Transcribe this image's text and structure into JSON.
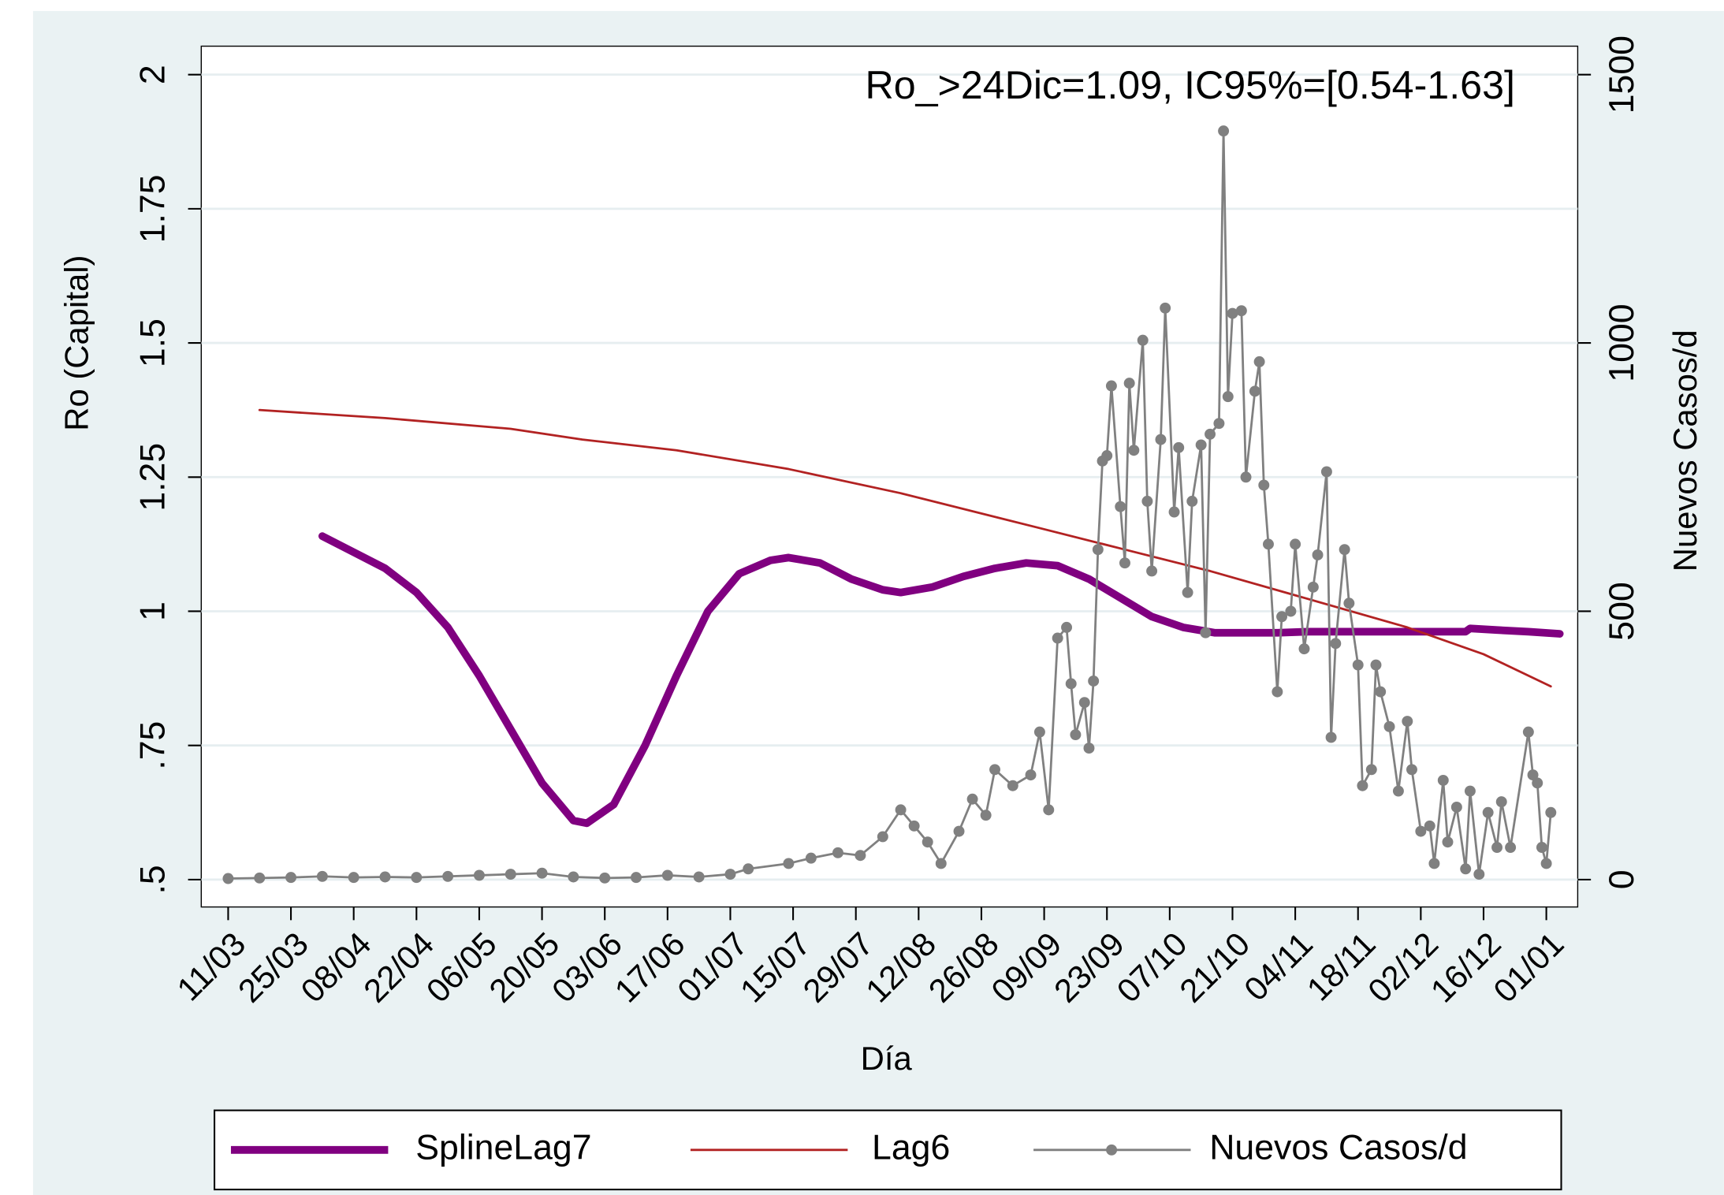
{
  "chart_data": {
    "type": "line",
    "annotation": "Ro_>24Dic=1.09, IC95%=[0.54-1.63]",
    "xlabel": "Día",
    "ylabel": "Ro (Capital)",
    "y2label": "Nuevos Casos/d",
    "xlim": [
      -6,
      301
    ],
    "xticks": [
      {
        "value": 0,
        "label": "11/03"
      },
      {
        "value": 14,
        "label": "25/03"
      },
      {
        "value": 28,
        "label": "08/04"
      },
      {
        "value": 42,
        "label": "22/04"
      },
      {
        "value": 56,
        "label": "06/05"
      },
      {
        "value": 70,
        "label": "20/05"
      },
      {
        "value": 84,
        "label": "03/06"
      },
      {
        "value": 98,
        "label": "17/06"
      },
      {
        "value": 112,
        "label": "01/07"
      },
      {
        "value": 126,
        "label": "15/07"
      },
      {
        "value": 140,
        "label": "29/07"
      },
      {
        "value": 154,
        "label": "12/08"
      },
      {
        "value": 168,
        "label": "26/08"
      },
      {
        "value": 182,
        "label": "09/09"
      },
      {
        "value": 196,
        "label": "23/09"
      },
      {
        "value": 210,
        "label": "07/10"
      },
      {
        "value": 224,
        "label": "21/10"
      },
      {
        "value": 238,
        "label": "04/11"
      },
      {
        "value": 252,
        "label": "18/11"
      },
      {
        "value": 266,
        "label": "02/12"
      },
      {
        "value": 280,
        "label": "16/12"
      },
      {
        "value": 294,
        "label": "01/01"
      }
    ],
    "ylim": [
      0.449,
      2.053
    ],
    "yticks": [
      {
        "value": 0.5,
        "label": ".5"
      },
      {
        "value": 0.75,
        "label": ".75"
      },
      1,
      1.25,
      1.5,
      1.75,
      2
    ],
    "y2lim": [
      -51,
      1553
    ],
    "y2ticks": [
      0,
      500,
      1000,
      1500
    ],
    "grid": true,
    "legend": "bottom",
    "series": [
      {
        "name": "SplineLag7",
        "color": "#800080",
        "axis": "y",
        "x": [
          21,
          28,
          35,
          42,
          49,
          56,
          63,
          70,
          77,
          80,
          86,
          93,
          100,
          107,
          114,
          121,
          125,
          132,
          139,
          146,
          150,
          157,
          164,
          171,
          178,
          185,
          192,
          199,
          206,
          213,
          220,
          227,
          234,
          241,
          248,
          255,
          262,
          269,
          276,
          277,
          283,
          290,
          297
        ],
        "values": [
          1.14,
          1.11,
          1.08,
          1.035,
          0.97,
          0.88,
          0.78,
          0.68,
          0.61,
          0.605,
          0.64,
          0.75,
          0.88,
          1.0,
          1.07,
          1.095,
          1.1,
          1.09,
          1.06,
          1.04,
          1.035,
          1.045,
          1.065,
          1.08,
          1.09,
          1.085,
          1.06,
          1.025,
          0.99,
          0.97,
          0.96,
          0.96,
          0.96,
          0.962,
          0.962,
          0.962,
          0.962,
          0.962,
          0.962,
          0.968,
          0.965,
          0.962,
          0.958
        ]
      },
      {
        "name": "Lag6",
        "color": "#b22222",
        "axis": "y",
        "x": [
          7,
          35,
          63,
          79,
          100,
          125,
          150,
          181,
          200,
          219,
          240,
          263,
          280,
          295
        ],
        "values": [
          1.375,
          1.36,
          1.34,
          1.32,
          1.3,
          1.265,
          1.22,
          1.155,
          1.115,
          1.075,
          1.025,
          0.97,
          0.92,
          0.86
        ]
      },
      {
        "name": "Nuevos Casos/d",
        "color": "#808080",
        "axis": "y2",
        "x": [
          0,
          7,
          14,
          21,
          28,
          35,
          42,
          49,
          56,
          63,
          70,
          77,
          84,
          91,
          98,
          105,
          112,
          116,
          125,
          130,
          136,
          141,
          146,
          150,
          153,
          156,
          159,
          163,
          166,
          169,
          171,
          175,
          179,
          181,
          183,
          185,
          187,
          188,
          189,
          191,
          192,
          193,
          194,
          195,
          196,
          197,
          199,
          200,
          201,
          202,
          204,
          205,
          206,
          208,
          209,
          211,
          212,
          214,
          215,
          217,
          218,
          219,
          221,
          222,
          223,
          224,
          226,
          227,
          229,
          230,
          231,
          232,
          234,
          235,
          237,
          238,
          240,
          242,
          243,
          245,
          246,
          247,
          249,
          250,
          252,
          253,
          255,
          256,
          257,
          259,
          261,
          263,
          264,
          266,
          268,
          269,
          271,
          272,
          274,
          276,
          277,
          279,
          281,
          283,
          284,
          286,
          290,
          291,
          292,
          293,
          294,
          295
        ],
        "values": [
          2,
          3,
          4,
          6,
          4,
          5,
          4,
          6,
          8,
          10,
          12,
          5,
          3,
          4,
          8,
          5,
          10,
          20,
          30,
          40,
          50,
          45,
          80,
          130,
          100,
          70,
          30,
          90,
          150,
          120,
          205,
          175,
          195,
          275,
          130,
          450,
          470,
          365,
          270,
          330,
          245,
          370,
          615,
          780,
          790,
          920,
          695,
          590,
          925,
          800,
          1005,
          705,
          575,
          820,
          1065,
          685,
          805,
          535,
          705,
          810,
          460,
          830,
          850,
          1395,
          900,
          1055,
          1060,
          750,
          910,
          965,
          735,
          625,
          350,
          490,
          500,
          625,
          430,
          545,
          605,
          760,
          265,
          440,
          615,
          515,
          400,
          175,
          205,
          400,
          350,
          285,
          165,
          295,
          205,
          90,
          100,
          30,
          185,
          70,
          135,
          20,
          165,
          10,
          125,
          60,
          145,
          60,
          275,
          195,
          180,
          60,
          30,
          125
        ]
      }
    ]
  }
}
